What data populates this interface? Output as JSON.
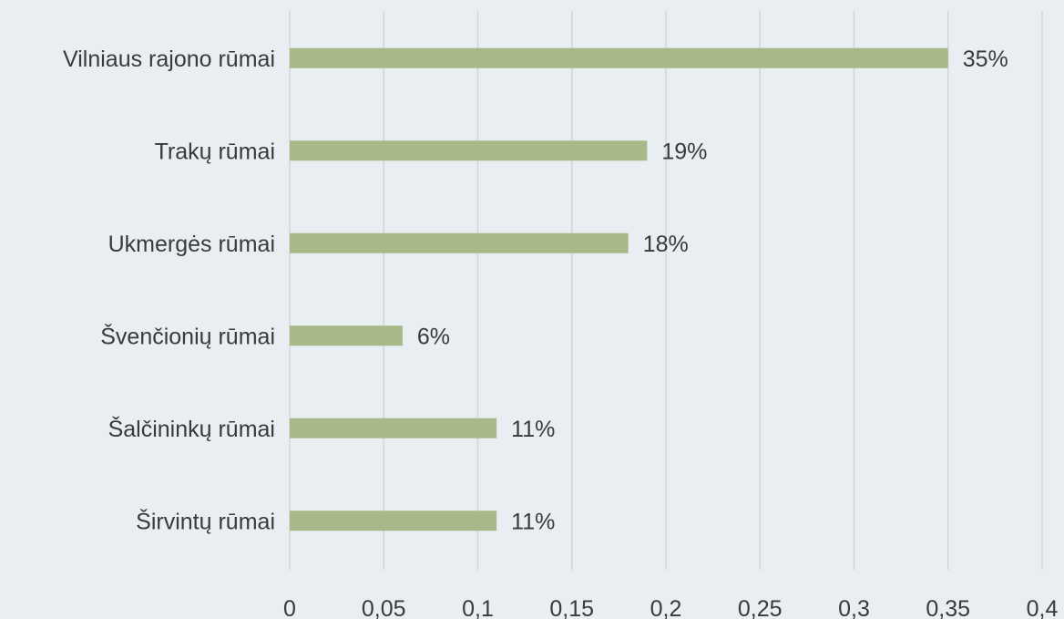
{
  "chart_data": {
    "type": "bar",
    "orientation": "horizontal",
    "categories": [
      "Vilniaus rajono rūmai",
      "Trakų rūmai",
      "Ukmergės rūmai",
      "Švenčionių rūmai",
      "Šalčininkų rūmai",
      "Širvintų rūmai"
    ],
    "values": [
      0.35,
      0.19,
      0.18,
      0.06,
      0.11,
      0.11
    ],
    "data_labels": [
      "35%",
      "19%",
      "18%",
      "6%",
      "11%",
      "11%"
    ],
    "x_ticks": [
      "0",
      "0,05",
      "0,1",
      "0,15",
      "0,2",
      "0,25",
      "0,3",
      "0,35",
      "0,4"
    ],
    "xlim": [
      0,
      0.4
    ],
    "grid": "vertical",
    "legend": "none",
    "title": "",
    "xlabel": "",
    "ylabel": "",
    "colors": {
      "bar": "#a9b888",
      "background": "#e8eef1",
      "grid": "#d2d6d8",
      "text": "#3a3a3a"
    }
  }
}
